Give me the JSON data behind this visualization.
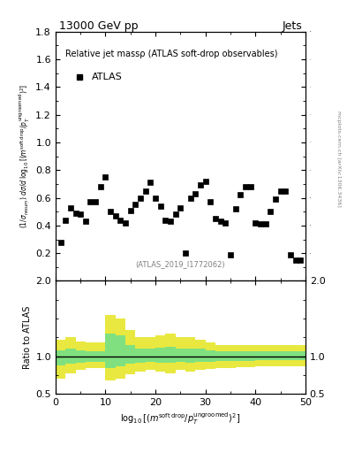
{
  "title_left": "13000 GeV pp",
  "title_right": "Jets",
  "plot_title": "Relative jet massρ (ATLAS soft-drop observables)",
  "legend_label": "ATLAS",
  "atlas_ref": "(ATLAS_2019_I1772062)",
  "ylabel_main": "(1/σ_resum) dσ/d log₁₀[(m^{soft drop}/p_T^{ungroomed})^2]",
  "ylabel_ratio": "Ratio to ATLAS",
  "xlabel": "log₁₀[(m^{soft drop}/p_T^{ungroomed})^2]",
  "right_label": "mcplots.cern.ch [arXiv:1306.3436]",
  "main_ylim": [
    0,
    1.8
  ],
  "main_yticks": [
    0.2,
    0.4,
    0.6,
    0.8,
    1.0,
    1.2,
    1.4,
    1.6,
    1.8
  ],
  "ratio_ylim": [
    0.5,
    2.0
  ],
  "ratio_yticks": [
    0.5,
    1.0,
    2.0
  ],
  "xlim": [
    0,
    50
  ],
  "xticks": [
    0,
    10,
    20,
    30,
    40,
    50
  ],
  "data_x": [
    1,
    2,
    3,
    4,
    5,
    6,
    7,
    8,
    9,
    10,
    11,
    12,
    13,
    14,
    15,
    16,
    17,
    18,
    19,
    20,
    21,
    22,
    23,
    24,
    25,
    26,
    27,
    28,
    29,
    30,
    31,
    32,
    33,
    34,
    35,
    36,
    37,
    38,
    39,
    40,
    41,
    42,
    43,
    44,
    45,
    46,
    47,
    48,
    49
  ],
  "data_y": [
    0.28,
    0.44,
    0.53,
    0.49,
    0.48,
    0.43,
    0.57,
    0.57,
    0.68,
    0.75,
    0.5,
    0.47,
    0.44,
    0.42,
    0.51,
    0.55,
    0.6,
    0.65,
    0.71,
    0.6,
    0.54,
    0.44,
    0.43,
    0.48,
    0.53,
    0.2,
    0.6,
    0.63,
    0.69,
    0.72,
    0.57,
    0.45,
    0.43,
    0.42,
    0.19,
    0.52,
    0.62,
    0.68,
    0.68,
    0.42,
    0.41,
    0.41,
    0.5,
    0.59,
    0.65,
    0.65,
    0.19,
    0.15,
    0.15
  ],
  "ratio_x_edges": [
    0,
    2,
    4,
    6,
    8,
    10,
    12,
    14,
    16,
    18,
    20,
    22,
    24,
    26,
    28,
    30,
    32,
    34,
    36,
    38,
    40,
    42,
    44,
    46,
    48,
    50
  ],
  "ratio_green_lo": [
    0.88,
    0.9,
    0.92,
    0.93,
    0.93,
    0.85,
    0.87,
    0.9,
    0.92,
    0.93,
    0.92,
    0.91,
    0.93,
    0.92,
    0.93,
    0.93,
    0.94,
    0.94,
    0.94,
    0.94,
    0.95,
    0.95,
    0.95,
    0.95,
    0.95
  ],
  "ratio_green_hi": [
    1.08,
    1.1,
    1.08,
    1.07,
    1.07,
    1.3,
    1.28,
    1.15,
    1.1,
    1.1,
    1.12,
    1.13,
    1.1,
    1.1,
    1.1,
    1.08,
    1.07,
    1.07,
    1.07,
    1.07,
    1.07,
    1.07,
    1.07,
    1.07,
    1.07
  ],
  "ratio_yellow_lo": [
    0.7,
    0.78,
    0.82,
    0.84,
    0.84,
    0.68,
    0.7,
    0.76,
    0.8,
    0.82,
    0.8,
    0.78,
    0.82,
    0.8,
    0.82,
    0.83,
    0.85,
    0.85,
    0.86,
    0.86,
    0.87,
    0.87,
    0.87,
    0.87,
    0.87
  ],
  "ratio_yellow_hi": [
    1.22,
    1.25,
    1.2,
    1.18,
    1.18,
    1.55,
    1.5,
    1.35,
    1.25,
    1.25,
    1.28,
    1.3,
    1.25,
    1.25,
    1.22,
    1.18,
    1.15,
    1.15,
    1.15,
    1.15,
    1.15,
    1.15,
    1.15,
    1.15,
    1.15
  ],
  "green_color": "#80e080",
  "yellow_color": "#e8e840",
  "marker_color": "black",
  "marker_size": 5
}
